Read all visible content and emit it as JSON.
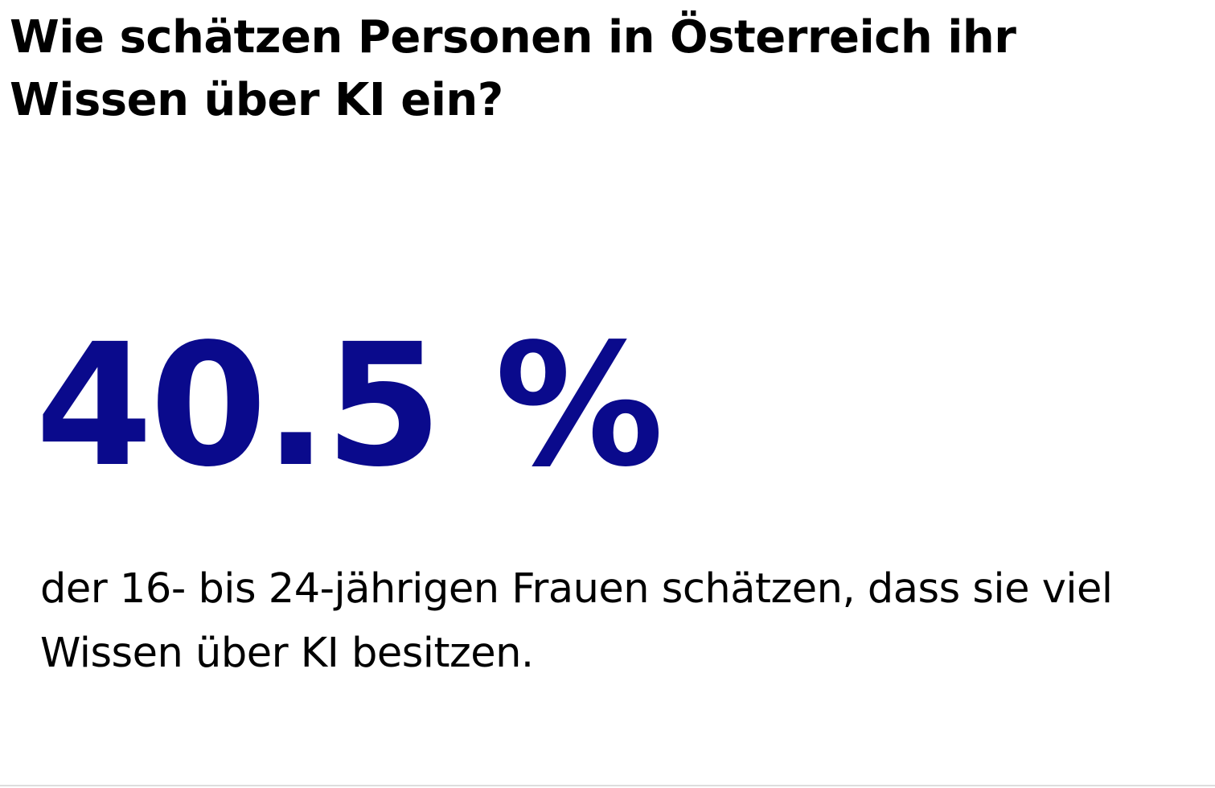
{
  "heading": "Wie schätzen Personen in Österreich ihr Wissen über KI ein?",
  "stat": {
    "value": "40.5 %",
    "color": "#0a0a8c",
    "description": "der 16- bis 24-jährigen Frauen schätzen, dass sie viel Wissen über KI besitzen."
  }
}
